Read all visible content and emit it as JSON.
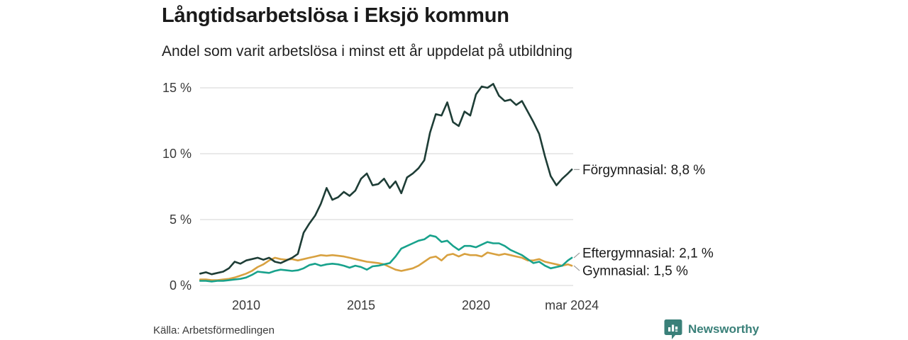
{
  "title": "Långtidsarbetslösa i Eksjö kommun",
  "subtitle": "Andel som varit arbetslösa i minst ett år uppdelat på utbildning",
  "source": "Källa: Arbetsförmedlingen",
  "brand": {
    "name": "Newsworthy",
    "color": "#3a8079",
    "icon": "bar-chart-pin-icon"
  },
  "chart_data": {
    "type": "line",
    "title": "Långtidsarbetslösa i Eksjö kommun",
    "subtitle": "Andel som varit arbetslösa i minst ett år uppdelat på utbildning",
    "x_unit": "decimal year",
    "xlim": [
      2008.0,
      2024.17
    ],
    "ylim": [
      0,
      15.5
    ],
    "grid": "horizontal",
    "legend_position": "line-end-labels",
    "y_ticks": [
      {
        "label": "0 %",
        "value": 0
      },
      {
        "label": "5 %",
        "value": 5
      },
      {
        "label": "10 %",
        "value": 10
      },
      {
        "label": "15 %",
        "value": 15
      }
    ],
    "x_ticks": [
      {
        "label": "2010",
        "value": 2010
      },
      {
        "label": "2015",
        "value": 2015
      },
      {
        "label": "2020",
        "value": 2020
      },
      {
        "label": "mar 2024",
        "value": 2024.17
      }
    ],
    "x": [
      2008.0,
      2008.25,
      2008.5,
      2008.75,
      2009.0,
      2009.25,
      2009.5,
      2009.75,
      2010.0,
      2010.25,
      2010.5,
      2010.75,
      2011.0,
      2011.25,
      2011.5,
      2011.75,
      2012.0,
      2012.25,
      2012.5,
      2012.75,
      2013.0,
      2013.25,
      2013.5,
      2013.75,
      2014.0,
      2014.25,
      2014.5,
      2014.75,
      2015.0,
      2015.25,
      2015.5,
      2015.75,
      2016.0,
      2016.25,
      2016.5,
      2016.75,
      2017.0,
      2017.25,
      2017.5,
      2017.75,
      2018.0,
      2018.25,
      2018.5,
      2018.75,
      2019.0,
      2019.25,
      2019.5,
      2019.75,
      2020.0,
      2020.25,
      2020.5,
      2020.75,
      2021.0,
      2021.25,
      2021.5,
      2021.75,
      2022.0,
      2022.25,
      2022.5,
      2022.75,
      2023.0,
      2023.25,
      2023.5,
      2023.75,
      2024.0,
      2024.17
    ],
    "series": [
      {
        "id": "forgymnasial",
        "name": "Förgymnasial",
        "label": "Förgymnasial: 8,8 %",
        "latest_value": "8,8 %",
        "color": "#1e3d36",
        "values": [
          0.9,
          1.0,
          0.85,
          0.95,
          1.05,
          1.3,
          1.8,
          1.65,
          1.9,
          2.0,
          2.1,
          1.95,
          2.1,
          1.8,
          1.7,
          1.9,
          2.1,
          2.4,
          4.0,
          4.7,
          5.3,
          6.2,
          7.4,
          6.5,
          6.7,
          7.1,
          6.8,
          7.2,
          8.1,
          8.5,
          7.6,
          7.7,
          8.1,
          7.4,
          7.9,
          7.0,
          8.2,
          8.5,
          8.9,
          9.5,
          11.6,
          13.0,
          12.9,
          13.9,
          12.4,
          12.1,
          13.2,
          12.9,
          14.5,
          15.1,
          15.0,
          15.3,
          14.4,
          14.0,
          14.1,
          13.7,
          14.0,
          13.2,
          12.4,
          11.5,
          9.8,
          8.3,
          7.6,
          8.1,
          8.5,
          8.8
        ]
      },
      {
        "id": "eftergymnasial",
        "name": "Eftergymnasial",
        "label": "Eftergymnasial: 2,1 %",
        "latest_value": "2,1 %",
        "color": "#18a28c",
        "values": [
          0.35,
          0.35,
          0.3,
          0.35,
          0.35,
          0.4,
          0.45,
          0.5,
          0.6,
          0.8,
          1.05,
          1.0,
          0.95,
          1.1,
          1.2,
          1.15,
          1.1,
          1.15,
          1.3,
          1.55,
          1.65,
          1.5,
          1.6,
          1.65,
          1.6,
          1.5,
          1.35,
          1.5,
          1.4,
          1.2,
          1.45,
          1.5,
          1.6,
          1.7,
          2.2,
          2.8,
          3.0,
          3.2,
          3.4,
          3.5,
          3.8,
          3.7,
          3.3,
          3.4,
          3.0,
          2.7,
          3.0,
          3.0,
          2.9,
          3.1,
          3.3,
          3.2,
          3.2,
          3.0,
          2.7,
          2.5,
          2.3,
          2.0,
          1.7,
          1.8,
          1.5,
          1.3,
          1.4,
          1.5,
          1.9,
          2.1
        ]
      },
      {
        "id": "gymnasial",
        "name": "Gymnasial",
        "label": "Gymnasial: 1,5 %",
        "latest_value": "1,5 %",
        "color": "#d8a140",
        "values": [
          0.45,
          0.45,
          0.4,
          0.4,
          0.45,
          0.5,
          0.6,
          0.75,
          0.9,
          1.1,
          1.4,
          1.6,
          1.9,
          2.1,
          2.0,
          1.95,
          2.0,
          1.9,
          2.0,
          2.1,
          2.2,
          2.3,
          2.25,
          2.3,
          2.25,
          2.2,
          2.1,
          2.0,
          1.9,
          1.8,
          1.75,
          1.7,
          1.6,
          1.4,
          1.2,
          1.1,
          1.2,
          1.3,
          1.5,
          1.8,
          2.1,
          2.2,
          1.9,
          2.3,
          2.4,
          2.2,
          2.4,
          2.3,
          2.3,
          2.2,
          2.5,
          2.4,
          2.3,
          2.4,
          2.3,
          2.2,
          2.1,
          1.9,
          1.9,
          2.0,
          1.8,
          1.7,
          1.6,
          1.5,
          1.6,
          1.5
        ]
      }
    ]
  }
}
